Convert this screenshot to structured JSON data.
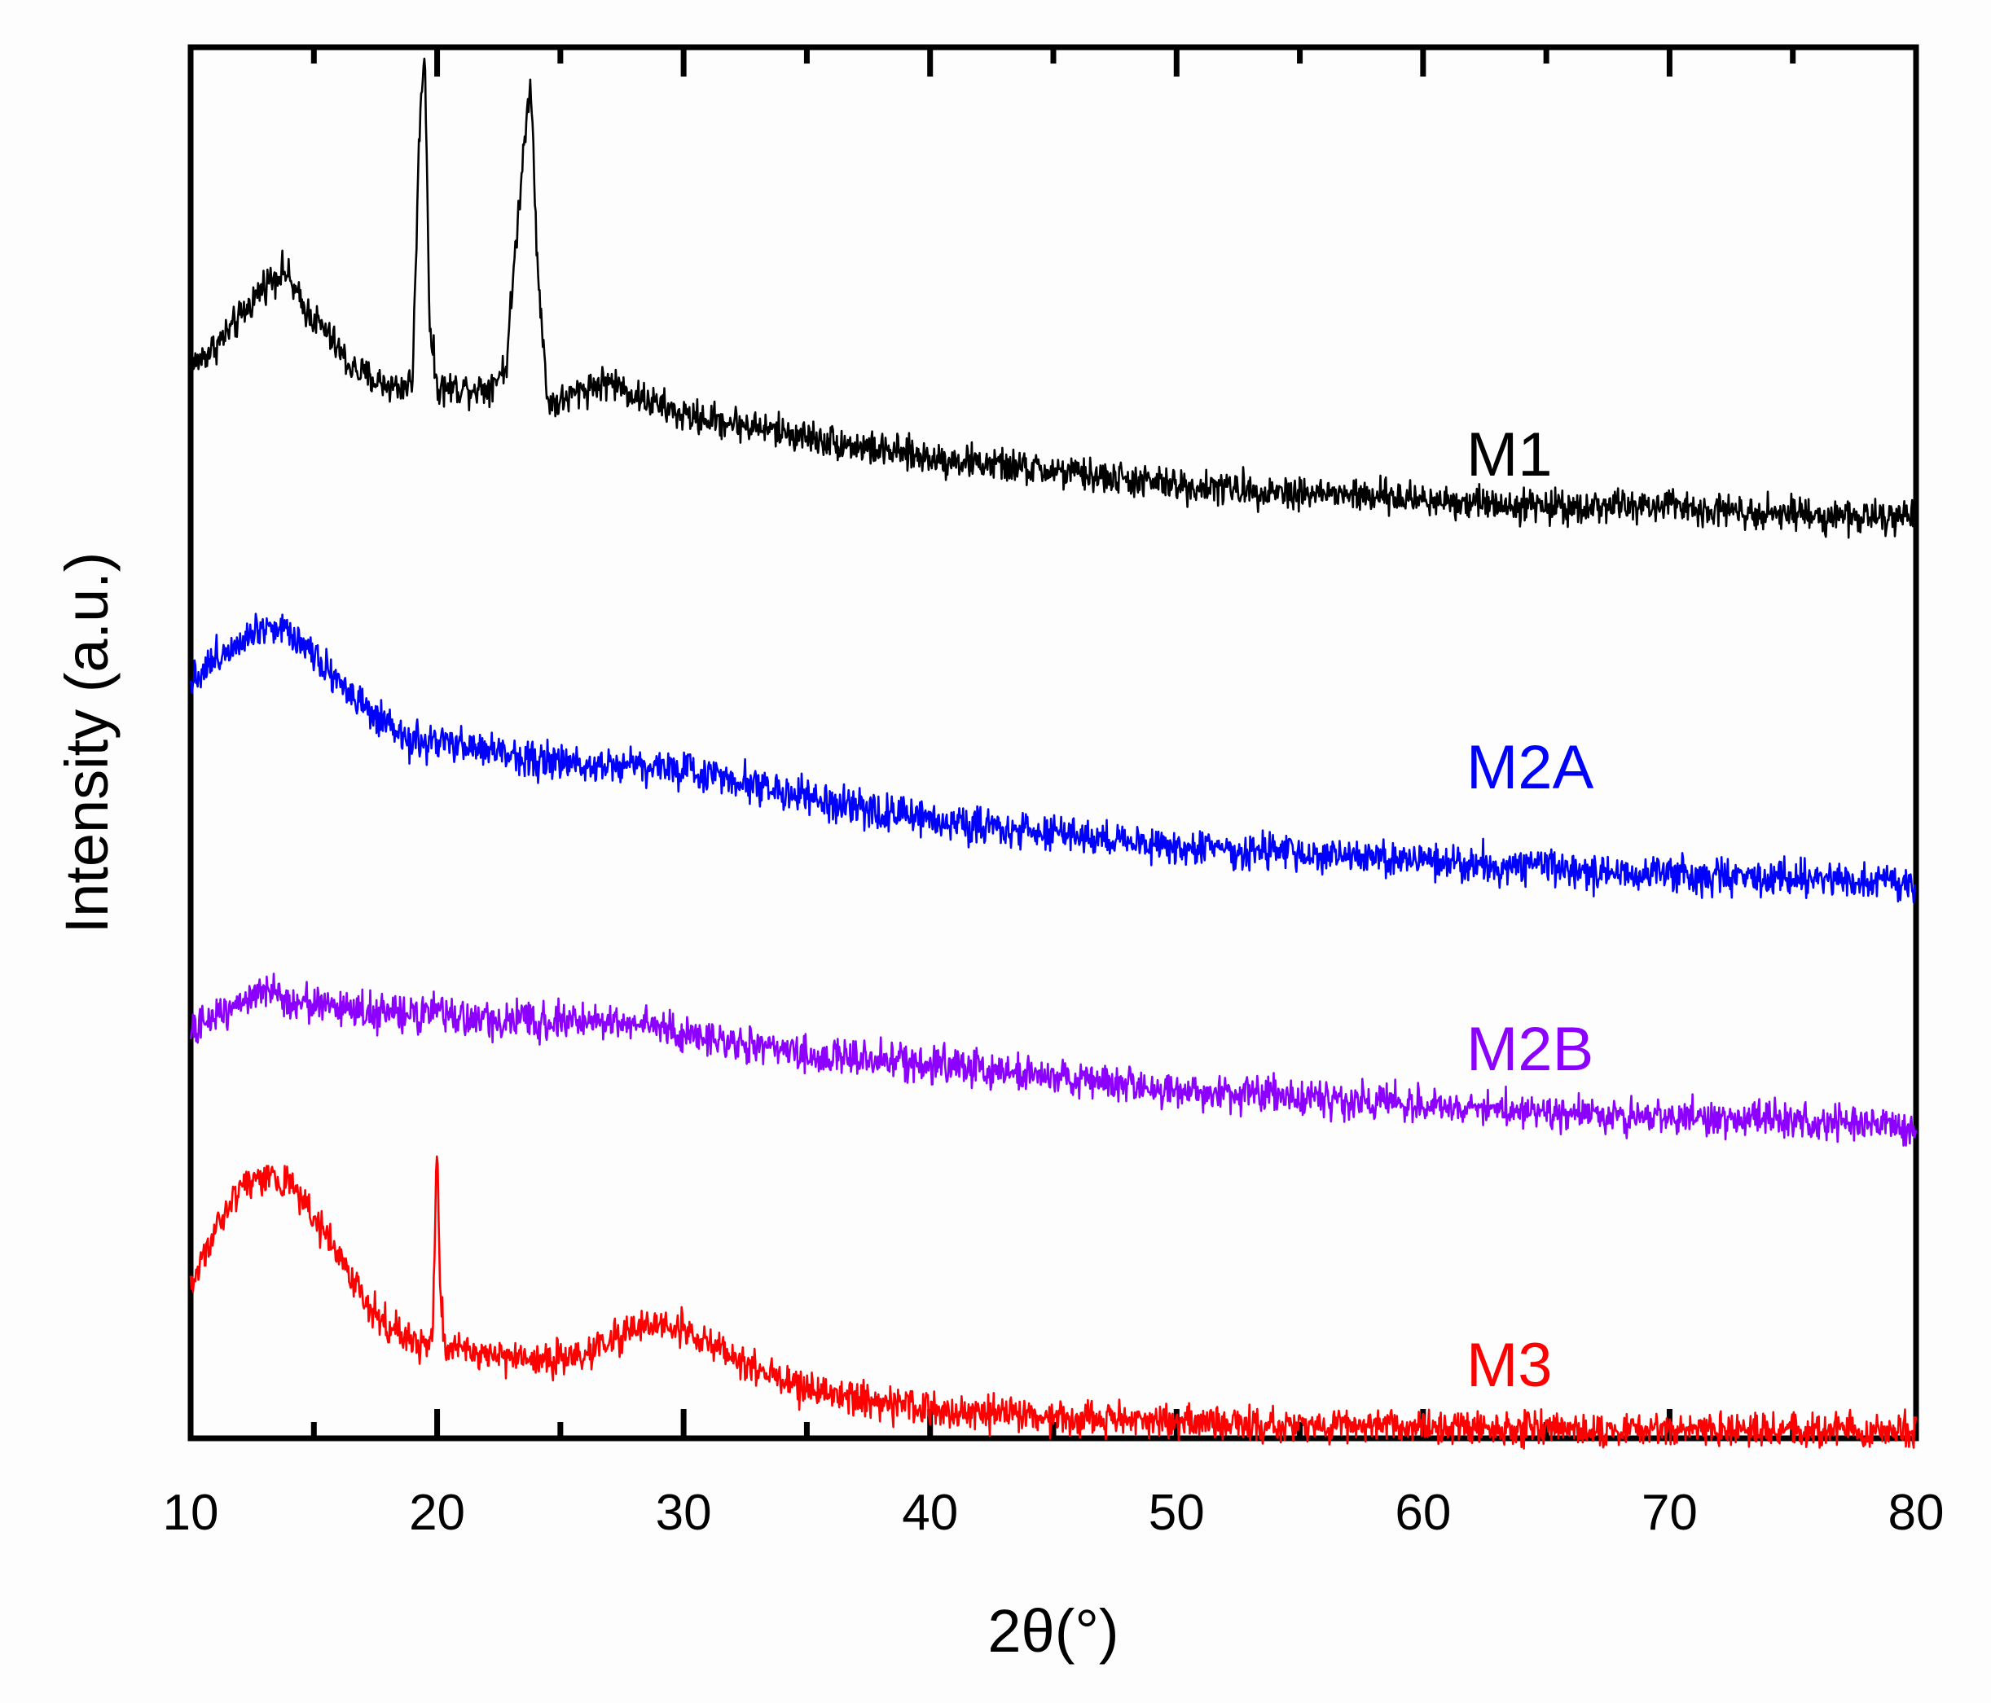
{
  "chart_data": {
    "type": "line",
    "title": "",
    "xlabel": "2θ(°)",
    "ylabel": "Intensity (a.u.)",
    "xlim": [
      10,
      80
    ],
    "ylim": [
      0,
      10
    ],
    "xticks": [
      10,
      20,
      30,
      40,
      50,
      60,
      70,
      80
    ],
    "xtick_labels": [
      "10",
      "20",
      "30",
      "40",
      "50",
      "60",
      "70",
      "80"
    ],
    "grid": false,
    "legend": "inline labels at right",
    "series": [
      {
        "name": "M1",
        "color": "#000000",
        "noise": 0.12,
        "x": [
          10,
          11,
          12,
          13,
          13.8,
          14.5,
          15.5,
          16.5,
          17.5,
          18.5,
          19.0,
          19.3,
          19.5,
          19.7,
          20.0,
          21,
          22,
          22.8,
          23.2,
          23.5,
          23.8,
          24.1,
          24.5,
          25,
          26,
          27,
          28,
          30,
          32,
          35,
          38,
          40,
          45,
          50,
          55,
          60,
          65,
          70,
          75,
          80
        ],
        "values": [
          7.7,
          7.85,
          8.05,
          8.3,
          8.4,
          8.15,
          7.95,
          7.7,
          7.6,
          7.55,
          7.6,
          9.5,
          10.0,
          8.0,
          7.55,
          7.55,
          7.55,
          7.7,
          8.6,
          9.25,
          9.8,
          8.3,
          7.45,
          7.45,
          7.55,
          7.6,
          7.5,
          7.35,
          7.3,
          7.2,
          7.1,
          7.05,
          6.95,
          6.85,
          6.8,
          6.75,
          6.7,
          6.7,
          6.65,
          6.6
        ]
      },
      {
        "name": "M2A",
        "color": "#0000ff",
        "noise": 0.13,
        "x": [
          10,
          11,
          12,
          13,
          14,
          15,
          16,
          17,
          18,
          19,
          20,
          22,
          25,
          28,
          30,
          32,
          34,
          36,
          40,
          45,
          50,
          55,
          60,
          65,
          70,
          75,
          80
        ],
        "values": [
          5.45,
          5.6,
          5.75,
          5.85,
          5.8,
          5.65,
          5.45,
          5.25,
          5.1,
          5.0,
          5.0,
          4.95,
          4.85,
          4.85,
          4.8,
          4.75,
          4.65,
          4.55,
          4.45,
          4.35,
          4.25,
          4.2,
          4.15,
          4.1,
          4.05,
          4.02,
          4.0
        ]
      },
      {
        "name": "M2B",
        "color": "#8c00ff",
        "noise": 0.13,
        "x": [
          10,
          11,
          12,
          13,
          14,
          16,
          18,
          20,
          22,
          24,
          26,
          28,
          30,
          32,
          35,
          40,
          45,
          50,
          55,
          60,
          65,
          70,
          75,
          80
        ],
        "values": [
          2.9,
          3.05,
          3.15,
          3.2,
          3.15,
          3.1,
          3.05,
          3.05,
          3.0,
          3.0,
          3.0,
          3.0,
          2.9,
          2.85,
          2.75,
          2.7,
          2.6,
          2.5,
          2.45,
          2.4,
          2.35,
          2.3,
          2.28,
          2.25
        ]
      },
      {
        "name": "M3",
        "color": "#ff0000",
        "noise": 0.12,
        "x": [
          10,
          11,
          12,
          13,
          14,
          15,
          16,
          17,
          18,
          19,
          19.8,
          19.9,
          20.0,
          20.1,
          20.3,
          21,
          22,
          24,
          26,
          27,
          28,
          29,
          30,
          31,
          33,
          35,
          38,
          40,
          45,
          50,
          55,
          60,
          65,
          70,
          75,
          80
        ],
        "values": [
          1.1,
          1.5,
          1.8,
          1.9,
          1.85,
          1.6,
          1.3,
          1.0,
          0.8,
          0.7,
          0.68,
          1.4,
          2.15,
          1.2,
          0.65,
          0.65,
          0.6,
          0.55,
          0.6,
          0.7,
          0.78,
          0.82,
          0.78,
          0.7,
          0.5,
          0.35,
          0.25,
          0.2,
          0.15,
          0.12,
          0.1,
          0.08,
          0.07,
          0.06,
          0.06,
          0.05
        ]
      }
    ]
  }
}
